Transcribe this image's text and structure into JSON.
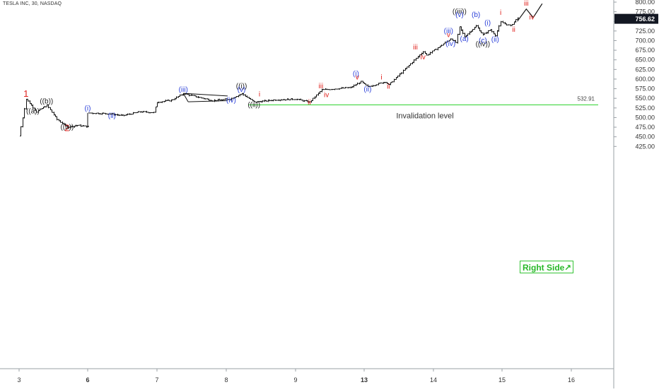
{
  "header": {
    "title": "TESLA INC, 30, NASDAQ"
  },
  "price_axis": {
    "ticks": [
      "800.00",
      "775.00",
      "750.00",
      "725.00",
      "700.00",
      "675.00",
      "650.00",
      "625.00",
      "600.00",
      "575.00",
      "550.00",
      "525.00",
      "500.00",
      "475.00",
      "450.00",
      "425.00"
    ],
    "last_price": "756.62"
  },
  "time_axis": {
    "ticks": [
      "3",
      "6",
      "7",
      "8",
      "9",
      "13",
      "14",
      "15",
      "16"
    ]
  },
  "invalidation": {
    "label": "Invalidation level",
    "value_text": "532.91"
  },
  "badge": {
    "label": "Right Side",
    "arrow": "↗"
  },
  "colors": {
    "red": "#e0201c",
    "blue": "#2a3fd9",
    "black": "#222222",
    "green": "#2fd32f"
  },
  "chart_data": {
    "type": "candlestick",
    "title": "TESLA INC, 30, NASDAQ",
    "ylim": [
      415,
      805
    ],
    "y_ticks": [
      800,
      775,
      750,
      725,
      700,
      675,
      650,
      625,
      600,
      575,
      550,
      525,
      500,
      475,
      450,
      425
    ],
    "x_ticks": [
      {
        "label": "3",
        "bold": false
      },
      {
        "label": "6",
        "bold": true
      },
      {
        "label": "7",
        "bold": false
      },
      {
        "label": "8",
        "bold": false
      },
      {
        "label": "9",
        "bold": false
      },
      {
        "label": "13",
        "bold": true
      },
      {
        "label": "14",
        "bold": false
      },
      {
        "label": "15",
        "bold": false
      },
      {
        "label": "16",
        "bold": false
      }
    ],
    "last_price": 756.62,
    "invalidation_level": 532.91,
    "price_path": [
      {
        "t": 0.0,
        "p": 452
      },
      {
        "t": 0.1,
        "p": 548
      },
      {
        "t": 0.25,
        "p": 515
      },
      {
        "t": 0.4,
        "p": 532
      },
      {
        "t": 0.55,
        "p": 495
      },
      {
        "t": 0.7,
        "p": 475
      },
      {
        "t": 0.85,
        "p": 480
      },
      {
        "t": 1.0,
        "p": 476
      },
      {
        "t": 1.0,
        "p": 512
      },
      {
        "t": 1.3,
        "p": 510
      },
      {
        "t": 1.5,
        "p": 505
      },
      {
        "t": 1.75,
        "p": 515
      },
      {
        "t": 1.95,
        "p": 513
      },
      {
        "t": 2.0,
        "p": 540
      },
      {
        "t": 2.2,
        "p": 545
      },
      {
        "t": 2.38,
        "p": 562
      },
      {
        "t": 2.8,
        "p": 544
      },
      {
        "t": 3.05,
        "p": 548
      },
      {
        "t": 3.22,
        "p": 562
      },
      {
        "t": 3.4,
        "p": 540
      },
      {
        "t": 3.7,
        "p": 546
      },
      {
        "t": 4.0,
        "p": 548
      },
      {
        "t": 4.2,
        "p": 540
      },
      {
        "t": 4.38,
        "p": 572
      },
      {
        "t": 4.8,
        "p": 578
      },
      {
        "t": 4.95,
        "p": 593
      },
      {
        "t": 5.05,
        "p": 580
      },
      {
        "t": 5.3,
        "p": 593
      },
      {
        "t": 5.35,
        "p": 585
      },
      {
        "t": 5.85,
        "p": 672
      },
      {
        "t": 5.9,
        "p": 662
      },
      {
        "t": 6.25,
        "p": 705
      },
      {
        "t": 6.32,
        "p": 695
      },
      {
        "t": 6.38,
        "p": 735
      },
      {
        "t": 6.45,
        "p": 710
      },
      {
        "t": 6.62,
        "p": 738
      },
      {
        "t": 6.72,
        "p": 715
      },
      {
        "t": 6.82,
        "p": 728
      },
      {
        "t": 6.9,
        "p": 714
      },
      {
        "t": 6.98,
        "p": 748
      },
      {
        "t": 7.12,
        "p": 738
      },
      {
        "t": 7.22,
        "p": 760
      }
    ],
    "projection": [
      {
        "t": 7.22,
        "p": 750
      },
      {
        "t": 7.35,
        "p": 782
      },
      {
        "t": 7.45,
        "p": 760
      },
      {
        "t": 7.58,
        "p": 796
      }
    ],
    "triangle": [
      {
        "t": 2.38,
        "p": 563
      },
      {
        "t": 3.02,
        "p": 556
      },
      {
        "t": 2.45,
        "p": 541
      },
      {
        "t": 3.02,
        "p": 544
      }
    ],
    "labels": [
      {
        "text": "1",
        "t": 0.1,
        "p": 554,
        "color": "red",
        "size": 13
      },
      {
        "text": "2",
        "t": 0.7,
        "p": 465,
        "color": "red",
        "size": 13
      },
      {
        "text": "((a))",
        "t": 0.2,
        "p": 511,
        "color": "black",
        "size": 10
      },
      {
        "text": "((b))",
        "t": 0.4,
        "p": 537,
        "color": "black",
        "size": 10
      },
      {
        "text": "((b))",
        "t": 0.7,
        "p": 470,
        "color": "black",
        "size": 10
      },
      {
        "text": "(i)",
        "t": 1.0,
        "p": 518,
        "color": "blue",
        "size": 10
      },
      {
        "text": "(ii)",
        "t": 1.35,
        "p": 499,
        "color": "blue",
        "size": 10
      },
      {
        "text": "(iii)",
        "t": 2.38,
        "p": 567,
        "color": "blue",
        "size": 10
      },
      {
        "text": "(iv)",
        "t": 3.07,
        "p": 539,
        "color": "blue",
        "size": 10
      },
      {
        "text": "((i))",
        "t": 3.22,
        "p": 576,
        "color": "black",
        "size": 10
      },
      {
        "text": "(v)",
        "t": 3.22,
        "p": 567,
        "color": "blue",
        "size": 10
      },
      {
        "text": "i",
        "t": 3.48,
        "p": 555,
        "color": "red",
        "size": 10
      },
      {
        "text": "((ii))",
        "t": 3.4,
        "p": 527,
        "color": "black",
        "size": 10
      },
      {
        "text": "ii",
        "t": 4.2,
        "p": 534,
        "color": "red",
        "size": 10
      },
      {
        "text": "iii",
        "t": 4.37,
        "p": 576,
        "color": "red",
        "size": 10
      },
      {
        "text": "iv",
        "t": 4.45,
        "p": 553,
        "color": "red",
        "size": 10
      },
      {
        "text": "(i)",
        "t": 4.88,
        "p": 608,
        "color": "blue",
        "size": 10
      },
      {
        "text": "v",
        "t": 4.9,
        "p": 599,
        "color": "red",
        "size": 10
      },
      {
        "text": "(ii)",
        "t": 5.05,
        "p": 568,
        "color": "blue",
        "size": 10
      },
      {
        "text": "i",
        "t": 5.25,
        "p": 599,
        "color": "red",
        "size": 10
      },
      {
        "text": "ii",
        "t": 5.35,
        "p": 575,
        "color": "red",
        "size": 10
      },
      {
        "text": "iii",
        "t": 5.74,
        "p": 677,
        "color": "red",
        "size": 10
      },
      {
        "text": "iv",
        "t": 5.85,
        "p": 651,
        "color": "red",
        "size": 10
      },
      {
        "text": "(iii)",
        "t": 6.22,
        "p": 719,
        "color": "blue",
        "size": 10
      },
      {
        "text": "v",
        "t": 6.22,
        "p": 709,
        "color": "red",
        "size": 10
      },
      {
        "text": "(iv)",
        "t": 6.25,
        "p": 686,
        "color": "blue",
        "size": 10
      },
      {
        "text": "((iii))",
        "t": 6.38,
        "p": 770,
        "color": "black",
        "size": 10
      },
      {
        "text": "(v)",
        "t": 6.38,
        "p": 761,
        "color": "blue",
        "size": 10
      },
      {
        "text": "(a)",
        "t": 6.45,
        "p": 699,
        "color": "blue",
        "size": 10
      },
      {
        "text": "(b)",
        "t": 6.62,
        "p": 761,
        "color": "blue",
        "size": 10
      },
      {
        "text": "(i)",
        "t": 6.79,
        "p": 740,
        "color": "blue",
        "size": 10
      },
      {
        "text": "(c)",
        "t": 6.72,
        "p": 694,
        "color": "blue",
        "size": 10
      },
      {
        "text": "((iv))",
        "t": 6.72,
        "p": 685,
        "color": "black",
        "size": 10
      },
      {
        "text": "(ii)",
        "t": 6.9,
        "p": 697,
        "color": "blue",
        "size": 10
      },
      {
        "text": "i",
        "t": 6.98,
        "p": 767,
        "color": "red",
        "size": 10
      },
      {
        "text": "ii",
        "t": 7.17,
        "p": 723,
        "color": "red",
        "size": 10
      },
      {
        "text": "iii",
        "t": 7.35,
        "p": 791,
        "color": "red",
        "size": 10
      },
      {
        "text": "iv",
        "t": 7.43,
        "p": 755,
        "color": "red",
        "size": 10
      }
    ]
  }
}
